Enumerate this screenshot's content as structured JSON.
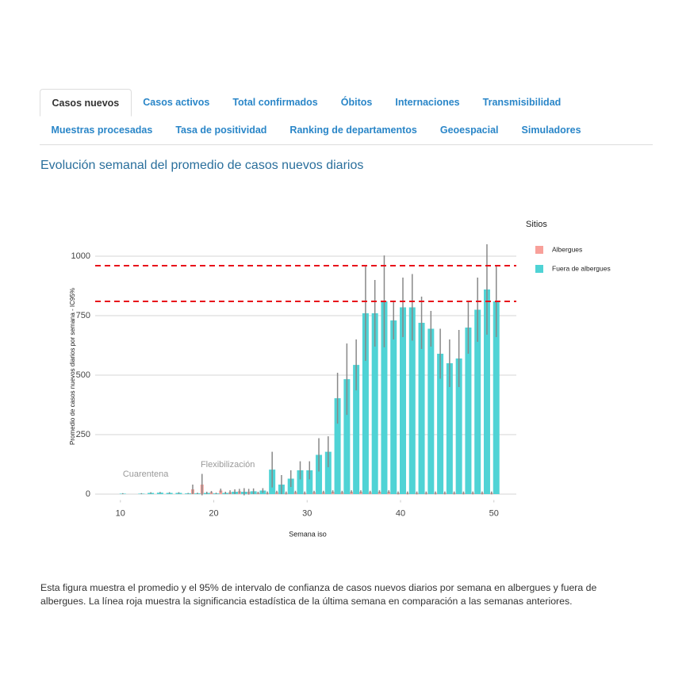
{
  "tabs": [
    "Casos nuevos",
    "Casos activos",
    "Total confirmados",
    "Óbitos",
    "Internaciones",
    "Transmisibilidad",
    "Muestras procesadas",
    "Tasa de positividad",
    "Ranking de departamentos",
    "Geoespacial",
    "Simuladores"
  ],
  "section_title": "Evolución semanal del promedio de casos nuevos diarios",
  "chart_data": {
    "type": "bar",
    "x_label": "Semana iso",
    "y_label": "Promedio de casos nuevos diarios por semana - IC95%",
    "legend_title": "Sitios",
    "x": [
      10,
      11,
      12,
      13,
      14,
      15,
      16,
      17,
      18,
      19,
      20,
      21,
      22,
      23,
      24,
      25,
      26,
      27,
      28,
      29,
      30,
      31,
      32,
      33,
      34,
      35,
      36,
      37,
      38,
      39,
      40,
      41,
      42,
      43,
      44,
      45,
      46,
      47,
      48,
      49,
      50
    ],
    "series": [
      {
        "name": "Albergues",
        "color": "#f8a09a",
        "values": [
          null,
          null,
          null,
          null,
          null,
          null,
          null,
          null,
          20,
          40,
          8,
          15,
          8,
          12,
          10,
          5,
          5,
          8,
          5,
          8,
          5,
          8,
          8,
          10,
          8,
          10,
          10,
          8,
          10,
          10,
          5,
          5,
          5,
          5,
          5,
          5,
          5,
          5,
          5,
          5,
          5
        ],
        "errors": [
          null,
          null,
          null,
          null,
          null,
          null,
          null,
          null,
          20,
          45,
          5,
          8,
          8,
          10,
          12,
          5,
          6,
          6,
          6,
          6,
          6,
          6,
          6,
          6,
          6,
          6,
          6,
          6,
          6,
          6,
          6,
          6,
          6,
          6,
          6,
          6,
          6,
          6,
          6,
          6,
          6
        ]
      },
      {
        "name": "Fuera de albergues",
        "color": "#4fd3d5",
        "values": [
          2,
          0,
          2,
          5,
          6,
          5,
          5,
          3,
          3,
          5,
          3,
          5,
          10,
          10,
          12,
          15,
          103,
          40,
          65,
          100,
          100,
          165,
          178,
          403,
          483,
          543,
          760,
          760,
          810,
          730,
          785,
          785,
          720,
          695,
          590,
          550,
          570,
          700,
          775,
          860,
          810
        ],
        "errors": [
          2,
          0,
          2,
          3,
          3,
          3,
          3,
          2,
          3,
          5,
          3,
          5,
          10,
          15,
          12,
          10,
          75,
          40,
          35,
          38,
          38,
          70,
          65,
          107,
          150,
          107,
          200,
          140,
          193,
          80,
          125,
          140,
          110,
          75,
          105,
          100,
          120,
          110,
          135,
          190,
          150
        ]
      }
    ],
    "xlim": [
      7.3,
      52.4
    ],
    "ylim": [
      -25,
      1060
    ],
    "xticks": [
      10,
      20,
      30,
      40,
      50
    ],
    "yticks": [
      0,
      250,
      500,
      750,
      1000
    ],
    "grid": true,
    "reference_lines": [
      {
        "y": 960,
        "color": "#e8101a"
      },
      {
        "y": 810,
        "color": "#e8101a"
      }
    ],
    "annotations": [
      {
        "text": "Cuarentena",
        "x": 12.7,
        "y": 83
      },
      {
        "text": "Flexibilización",
        "x": 21.5,
        "y": 123
      }
    ]
  },
  "caption": "Esta figura muestra el promedio y el 95% de intervalo de confianza de casos nuevos diarios por semana en albergues y fuera de albergues. La línea roja muestra la significancia estadística de la última semana en comparación a las semanas anteriores."
}
